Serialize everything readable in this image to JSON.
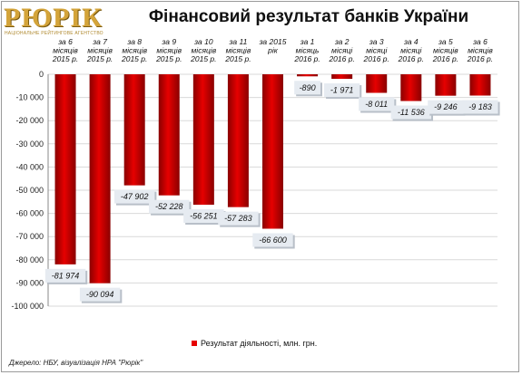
{
  "logo": {
    "name": "РЮРІК",
    "tagline": "НАЦІОНАЛЬНЕ РЕЙТИНГОВЕ АГЕНТСТВО"
  },
  "source": "Джерело: НБУ, візуалізація НРА \"Рюрік\"",
  "colors": {
    "bar": "#e60000",
    "bar_dark": "#8a0000",
    "label_bg": "#e6ebf1"
  },
  "chart_data": {
    "type": "bar",
    "title": "Фінансовий результат банків України",
    "categories": [
      [
        "за 6",
        "місяців",
        "2015 р."
      ],
      [
        "за 7",
        "місяців",
        "2015 р."
      ],
      [
        "за 8",
        "місяців",
        "2015 р."
      ],
      [
        "за 9",
        "місяців",
        "2015 р."
      ],
      [
        "за 10",
        "місяців",
        "2015 р."
      ],
      [
        "за 11",
        "місяців",
        "2015 р."
      ],
      [
        "за 2015",
        "рік"
      ],
      [
        "за 1",
        "місяць",
        "2016 р."
      ],
      [
        "за 2",
        "місяці",
        "2016 р."
      ],
      [
        "за 3",
        "місяці",
        "2016 р."
      ],
      [
        "за 4",
        "місяці",
        "2016 р."
      ],
      [
        "за 5",
        "місяців",
        "2016 р."
      ],
      [
        "за 6",
        "місяців",
        "2016 р."
      ]
    ],
    "series": [
      {
        "name": "Результат діяльності, млн. грн.",
        "values": [
          -81974,
          -90094,
          -47902,
          -52228,
          -56251,
          -57283,
          -66600,
          -890,
          -1971,
          -8011,
          -11536,
          -9246,
          -9183
        ],
        "labels": [
          "-81 974",
          "-90 094",
          "-47 902",
          "-52 228",
          "-56 251",
          "-57 283",
          "-66 600",
          "-890",
          "-1 971",
          "-8 011",
          "-11 536",
          "-9 246",
          "-9 183"
        ]
      }
    ],
    "ylim": [
      -100000,
      0
    ],
    "yticks": [
      0,
      -10000,
      -20000,
      -30000,
      -40000,
      -50000,
      -60000,
      -70000,
      -80000,
      -90000,
      -100000
    ],
    "ytick_labels": [
      "0",
      "-10 000",
      "-20 000",
      "-30 000",
      "-40 000",
      "-50 000",
      "-60 000",
      "-70 000",
      "-80 000",
      "-90 000",
      "-100 000"
    ],
    "grid": true,
    "legend": "bottom"
  }
}
